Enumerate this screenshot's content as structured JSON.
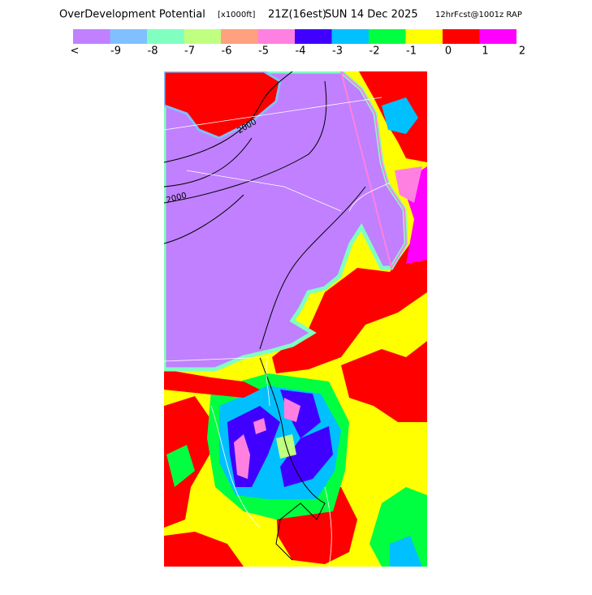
{
  "header": {
    "title_parts": [
      "OverDevelopment Potential",
      "[x1000ft]",
      "21Z(16est)",
      "SUN 14 Dec 2025",
      "12hrFcst@1001z RAP"
    ]
  },
  "legend": {
    "colors": [
      "#c080ff",
      "#80c0ff",
      "#80ffc0",
      "#c0ff80",
      "#ffa080",
      "#ff80e0",
      "#4000ff",
      "#00c0ff",
      "#00ff40",
      "#ffff00",
      "#ff0000",
      "#ff00ff"
    ],
    "labels": [
      "<",
      "-9",
      "-8",
      "-7",
      "-6",
      "-5",
      "-4",
      "-3",
      "-2",
      "-1",
      "0",
      "1",
      "2"
    ]
  },
  "map": {
    "contour_labels": [
      "2000",
      "2000"
    ]
  }
}
